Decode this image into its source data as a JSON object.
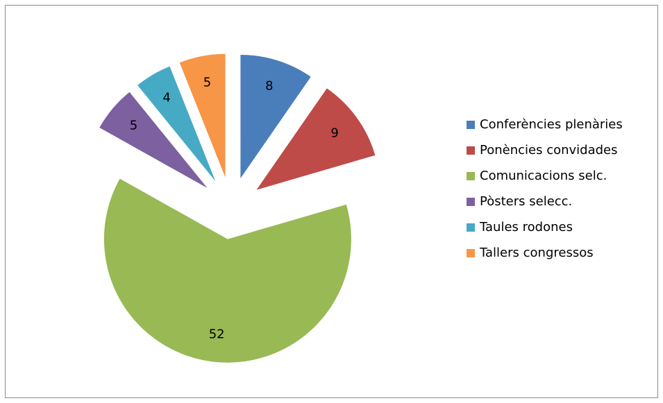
{
  "chart_data": {
    "type": "pie",
    "categories": [
      "Conferències plenàries",
      "Ponències convidades",
      "Comunicacions selc.",
      "Pòsters selecc.",
      "Taules rodones",
      "Tallers congressos"
    ],
    "values": [
      8,
      9,
      52,
      5,
      4,
      5
    ],
    "colors": [
      "#4a7ebb",
      "#be4b48",
      "#98b954",
      "#7d60a0",
      "#46aac5",
      "#f79646"
    ],
    "exploded": true,
    "legend": "right"
  }
}
